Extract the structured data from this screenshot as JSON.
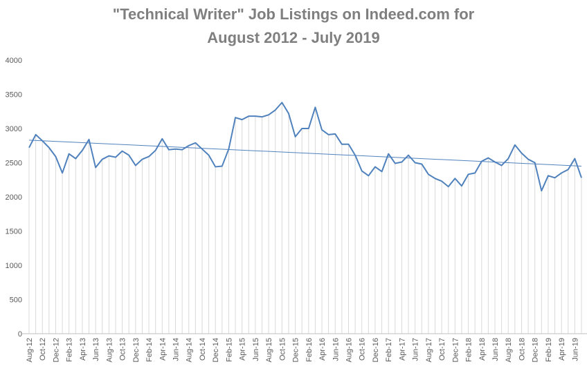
{
  "chart_data": {
    "type": "line",
    "title": [
      "\"Technical Writer\" Job Listings on Indeed.com for",
      "August 2012 - July 2019"
    ],
    "categories": [
      "Aug-12",
      null,
      "Oct-12",
      null,
      "Dec-12",
      null,
      "Feb-13",
      null,
      "Apr-13",
      null,
      "Jun-13",
      null,
      "Aug-13",
      null,
      "Oct-13",
      null,
      "Dec-13",
      null,
      "Feb-14",
      null,
      "Apr-14",
      null,
      "Jun-14",
      null,
      "Aug-14",
      null,
      "Oct-14",
      null,
      "Dec-14",
      null,
      "Feb-15",
      null,
      "Apr-15",
      null,
      "Jun-15",
      null,
      "Aug-15",
      null,
      "Oct-15",
      null,
      "Dec-15",
      null,
      "Feb-16",
      null,
      "Apr-16",
      null,
      "Jun-16",
      null,
      "Aug-16",
      null,
      "Oct-16",
      null,
      "Dec-16",
      null,
      "Feb-17",
      null,
      "Apr-17",
      null,
      "Jun-17",
      null,
      "Aug-17",
      null,
      "Oct-17",
      null,
      "Dec-17",
      null,
      "Feb-18",
      null,
      "Apr-18",
      null,
      "Jun-18",
      null,
      "Aug-18",
      null,
      "Oct-18",
      null,
      "Dec-18",
      null,
      "Feb-19",
      null,
      "Apr-19",
      null,
      "Jun-19",
      null
    ],
    "values": [
      2720,
      2910,
      2820,
      2720,
      2590,
      2350,
      2630,
      2560,
      2680,
      2840,
      2430,
      2550,
      2600,
      2580,
      2670,
      2610,
      2460,
      2550,
      2590,
      2680,
      2850,
      2690,
      2700,
      2690,
      2750,
      2790,
      2700,
      2610,
      2440,
      2450,
      2700,
      3160,
      3130,
      3180,
      3180,
      3170,
      3200,
      3270,
      3380,
      3220,
      2880,
      3000,
      3000,
      3310,
      2980,
      2910,
      2920,
      2770,
      2770,
      2610,
      2380,
      2310,
      2440,
      2370,
      2630,
      2490,
      2510,
      2610,
      2500,
      2480,
      2330,
      2270,
      2230,
      2150,
      2270,
      2160,
      2330,
      2350,
      2520,
      2570,
      2510,
      2460,
      2560,
      2760,
      2640,
      2550,
      2500,
      2090,
      2310,
      2280,
      2350,
      2400,
      2560,
      2280
    ],
    "color": "#4f81bd",
    "trendline": {
      "start": 2830,
      "end": 2450
    },
    "drop_lines": true,
    "ylim": [
      0,
      4000
    ],
    "yticks": [
      0,
      500,
      1000,
      1500,
      2000,
      2500,
      3000,
      3500,
      4000
    ]
  }
}
